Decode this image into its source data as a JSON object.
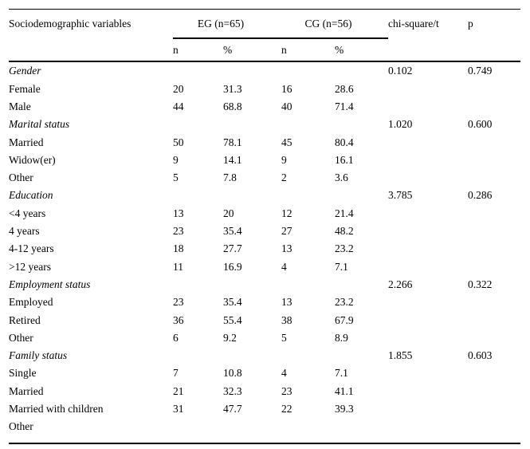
{
  "table": {
    "headers": {
      "variables": "Sociodemographic variables",
      "eg_group": "EG (n=65)",
      "cg_group": "CG (n=56)",
      "chi": "chi-square/t",
      "p": "p",
      "n": "n",
      "pct": "%"
    },
    "sections": [
      {
        "label": "Gender",
        "chi": "0.102",
        "p": "0.749",
        "rows": [
          {
            "label": "Female",
            "eg_n": "20",
            "eg_pct": "31.3",
            "cg_n": "16",
            "cg_pct": "28.6"
          },
          {
            "label": "Male",
            "eg_n": "44",
            "eg_pct": "68.8",
            "cg_n": "40",
            "cg_pct": "71.4"
          }
        ]
      },
      {
        "label": "Marital status",
        "chi": "1.020",
        "p": "0.600",
        "rows": [
          {
            "label": "Married",
            "eg_n": "50",
            "eg_pct": "78.1",
            "cg_n": "45",
            "cg_pct": "80.4"
          },
          {
            "label": "Widow(er)",
            "eg_n": "9",
            "eg_pct": "14.1",
            "cg_n": "9",
            "cg_pct": "16.1"
          },
          {
            "label": "Other",
            "eg_n": "5",
            "eg_pct": "7.8",
            "cg_n": "2",
            "cg_pct": "3.6"
          }
        ]
      },
      {
        "label": "Education",
        "chi": "3.785",
        "p": "0.286",
        "rows": [
          {
            "label": "<4 years",
            "eg_n": "13",
            "eg_pct": "20",
            "cg_n": "12",
            "cg_pct": "21.4"
          },
          {
            "label": "4 years",
            "eg_n": "23",
            "eg_pct": "35.4",
            "cg_n": "27",
            "cg_pct": "48.2"
          },
          {
            "label": "4-12 years",
            "eg_n": "18",
            "eg_pct": "27.7",
            "cg_n": "13",
            "cg_pct": "23.2"
          },
          {
            "label": ">12 years",
            "eg_n": "11",
            "eg_pct": "16.9",
            "cg_n": "4",
            "cg_pct": "7.1"
          }
        ]
      },
      {
        "label": "Employment status",
        "chi": "2.266",
        "p": "0.322",
        "rows": [
          {
            "label": "Employed",
            "eg_n": "23",
            "eg_pct": "35.4",
            "cg_n": "13",
            "cg_pct": "23.2"
          },
          {
            "label": "Retired",
            "eg_n": "36",
            "eg_pct": "55.4",
            "cg_n": "38",
            "cg_pct": "67.9"
          },
          {
            "label": "Other",
            "eg_n": "6",
            "eg_pct": "9.2",
            "cg_n": "5",
            "cg_pct": "8.9"
          }
        ]
      },
      {
        "label": "Family status",
        "chi": "1.855",
        "p": "0.603",
        "rows": [
          {
            "label": "Single",
            "eg_n": "7",
            "eg_pct": "10.8",
            "cg_n": "4",
            "cg_pct": "7.1"
          },
          {
            "label": "Married",
            "eg_n": "21",
            "eg_pct": "32.3",
            "cg_n": "23",
            "cg_pct": "41.1"
          },
          {
            "label": "Married with children",
            "eg_n": "31",
            "eg_pct": "47.7",
            "cg_n": "22",
            "cg_pct": "39.3"
          },
          {
            "label": "Other"
          }
        ]
      }
    ]
  },
  "chart_data": {
    "type": "table",
    "title": "Sociodemographic variables",
    "columns": [
      "Sociodemographic variables",
      "EG n",
      "EG %",
      "CG n",
      "CG %",
      "chi-square/t",
      "p"
    ],
    "group_sizes": {
      "EG": 65,
      "CG": 56
    }
  }
}
